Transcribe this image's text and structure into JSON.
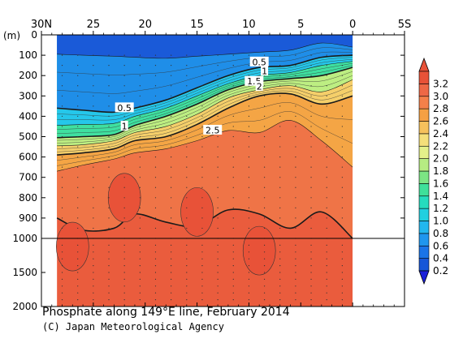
{
  "chart_data": {
    "type": "heatmap",
    "title": "Phosphate along 149°E line, February 2014",
    "credit": "(C) Japan Meteorological Agency",
    "ylabel": "(m)",
    "x_ticks": [
      {
        "lat": 30,
        "label": "30N"
      },
      {
        "lat": 25,
        "label": "25"
      },
      {
        "lat": 20,
        "label": "20"
      },
      {
        "lat": 15,
        "label": "15"
      },
      {
        "lat": 10,
        "label": "10"
      },
      {
        "lat": 5,
        "label": "5"
      },
      {
        "lat": 0,
        "label": "0"
      },
      {
        "lat": -5,
        "label": "5S"
      }
    ],
    "xlim": [
      30,
      -5
    ],
    "y_ticks_upper": [
      "0",
      "100",
      "200",
      "300",
      "400",
      "500",
      "600",
      "700",
      "800",
      "900",
      "1000"
    ],
    "y_ticks_lower": [
      "1500",
      "2000"
    ],
    "ylim": [
      0,
      2000
    ],
    "axis_break_depth": 1000,
    "colorbar_levels": [
      "0.2",
      "0.4",
      "0.6",
      "0.8",
      "1.0",
      "1.2",
      "1.4",
      "1.6",
      "1.8",
      "2.0",
      "2.2",
      "2.4",
      "2.6",
      "2.8",
      "3.0",
      "3.2"
    ],
    "colorbar_colors": [
      "#1656d8",
      "#1a74e8",
      "#1f96ee",
      "#22b7ee",
      "#21d0e0",
      "#26dcbe",
      "#3fe09a",
      "#7ce584",
      "#b6ec82",
      "#e4f08a",
      "#f5df7a",
      "#f6c15c",
      "#f5a043",
      "#f4804a",
      "#ee6846",
      "#e85238"
    ],
    "section_data": {
      "columns": [
        {
          "lat": 28.5,
          "d02": 95,
          "d05": 360,
          "d10": 445,
          "d15": 505,
          "d20": 545,
          "d25": 590,
          "d28": 670,
          "d30": 900
        },
        {
          "lat": 26,
          "d02": 100,
          "d05": 370,
          "d10": 440,
          "d15": 500,
          "d20": 540,
          "d25": 580,
          "d28": 640,
          "d30": 960
        },
        {
          "lat": 23,
          "d02": 105,
          "d05": 380,
          "d10": 435,
          "d15": 490,
          "d20": 520,
          "d25": 560,
          "d28": 610,
          "d30": 950
        },
        {
          "lat": 21,
          "d02": 110,
          "d05": 360,
          "d10": 400,
          "d15": 445,
          "d20": 480,
          "d25": 520,
          "d28": 580,
          "d30": 880
        },
        {
          "lat": 18,
          "d02": 115,
          "d05": 320,
          "d10": 360,
          "d15": 400,
          "d20": 450,
          "d25": 500,
          "d28": 560,
          "d30": 920
        },
        {
          "lat": 15,
          "d02": 105,
          "d05": 260,
          "d10": 300,
          "d15": 340,
          "d20": 390,
          "d25": 440,
          "d28": 520,
          "d30": 940
        },
        {
          "lat": 12,
          "d02": 95,
          "d05": 200,
          "d10": 240,
          "d15": 270,
          "d20": 310,
          "d25": 360,
          "d28": 470,
          "d30": 860
        },
        {
          "lat": 9,
          "d02": 85,
          "d05": 160,
          "d10": 200,
          "d15": 230,
          "d20": 270,
          "d25": 300,
          "d28": 480,
          "d30": 880
        },
        {
          "lat": 6,
          "d02": 75,
          "d05": 150,
          "d10": 185,
          "d15": 215,
          "d20": 250,
          "d25": 290,
          "d28": 420,
          "d30": 950
        },
        {
          "lat": 3,
          "d02": 40,
          "d05": 110,
          "d10": 150,
          "d15": 200,
          "d20": 280,
          "d25": 340,
          "d28": 520,
          "d30": 870
        },
        {
          "lat": 0,
          "d02": 60,
          "d05": 100,
          "d10": 130,
          "d15": 160,
          "d20": 220,
          "d25": 300,
          "d28": 650,
          "d30": 1000
        }
      ],
      "patches_3_0": [
        {
          "lat": 27,
          "depth": 1120
        },
        {
          "lat": 22,
          "depth": 800
        },
        {
          "lat": 15,
          "depth": 870
        },
        {
          "lat": 9,
          "depth": 1180
        }
      ],
      "contour_labels": [
        {
          "text": "0.5",
          "lat": 22,
          "depth": 360
        },
        {
          "text": "1",
          "lat": 22,
          "depth": 450
        },
        {
          "text": "2.5",
          "lat": 13.5,
          "depth": 470
        },
        {
          "text": "0.5",
          "lat": 9,
          "depth": 135
        },
        {
          "text": "1",
          "lat": 8.5,
          "depth": 180
        },
        {
          "text": "1.5",
          "lat": 9.5,
          "depth": 230
        },
        {
          "text": "2",
          "lat": 9,
          "depth": 255
        }
      ]
    }
  }
}
